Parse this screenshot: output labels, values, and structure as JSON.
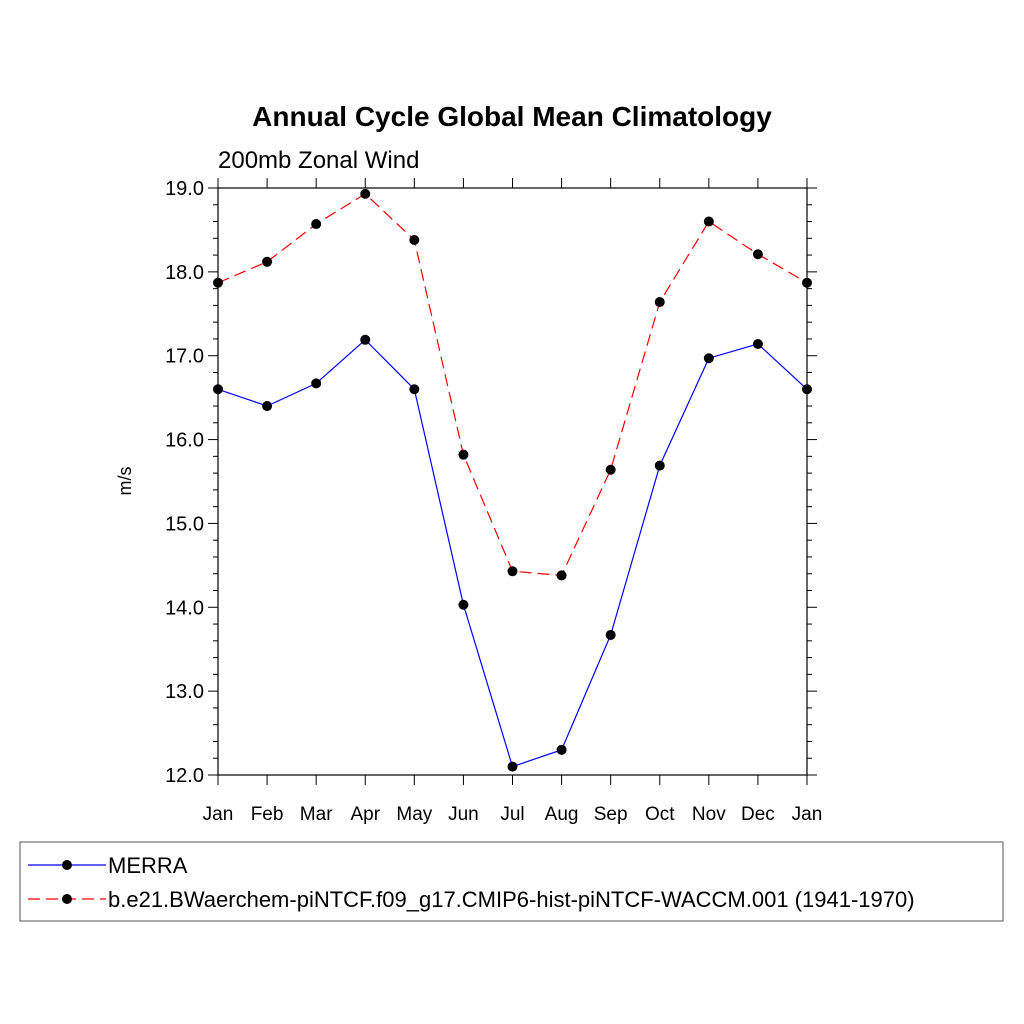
{
  "chart_data": {
    "type": "line",
    "title": "Annual Cycle Global Mean Climatology",
    "subtitle": "200mb Zonal Wind",
    "xlabel": "",
    "ylabel": "m/s",
    "categories": [
      "Jan",
      "Feb",
      "Mar",
      "Apr",
      "May",
      "Jun",
      "Jul",
      "Aug",
      "Sep",
      "Oct",
      "Nov",
      "Dec",
      "Jan"
    ],
    "yticks": [
      "12.0",
      "13.0",
      "14.0",
      "15.0",
      "16.0",
      "17.0",
      "18.0",
      "19.0"
    ],
    "ylim": [
      12.0,
      19.0
    ],
    "legend_position": "bottom",
    "series": [
      {
        "name": "MERRA",
        "color": "#0000ff",
        "line_style": "solid",
        "marker": "filled-circle",
        "values": [
          16.6,
          16.4,
          16.67,
          17.19,
          16.6,
          14.03,
          12.1,
          12.3,
          13.67,
          15.69,
          16.97,
          17.14,
          16.6
        ]
      },
      {
        "name": "b.e21.BWaerchem-piNTCF.f09_g17.CMIP6-hist-piNTCF-WACCM.001 (1941-1970)",
        "color": "#ff0000",
        "line_style": "dashed",
        "marker": "filled-circle",
        "values": [
          17.87,
          18.12,
          18.57,
          18.93,
          18.38,
          15.82,
          14.43,
          14.38,
          15.64,
          17.64,
          18.6,
          18.21,
          17.87
        ]
      }
    ]
  }
}
